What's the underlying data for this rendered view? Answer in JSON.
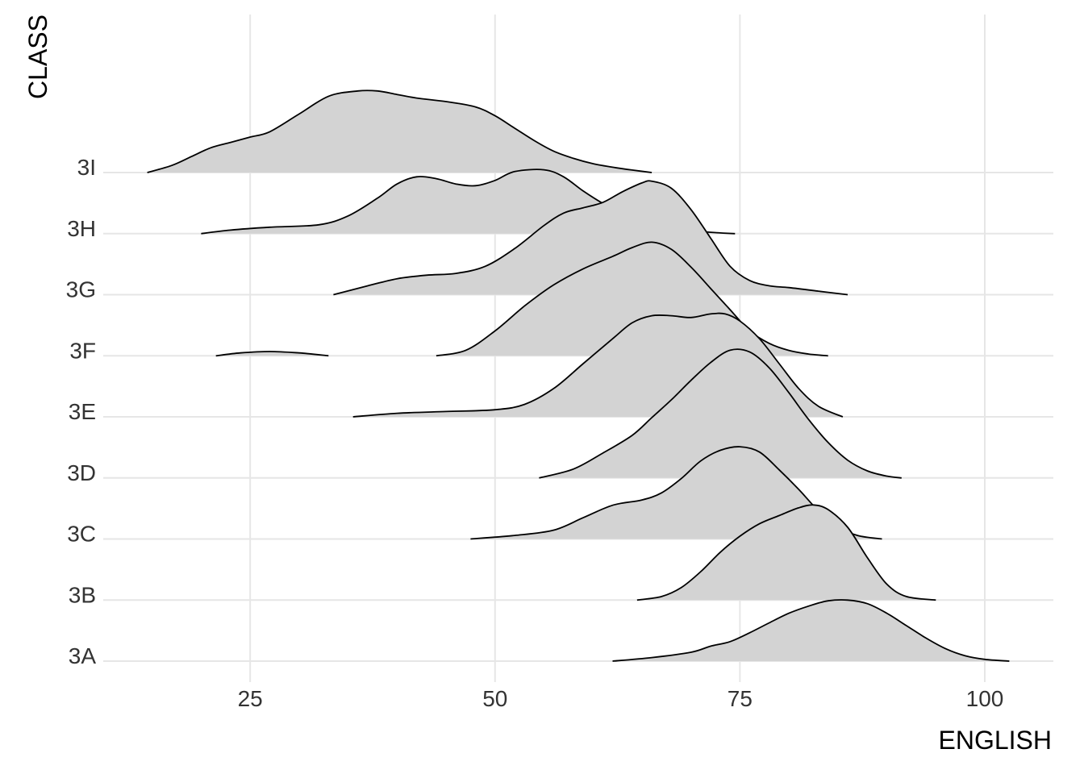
{
  "chart_data": {
    "type": "ridgeline",
    "xlabel": "ENGLISH",
    "ylabel": "CLASS",
    "x_ticks": [
      25,
      50,
      75,
      100
    ],
    "xlim": [
      10,
      107
    ],
    "grid": true,
    "categories": [
      "3A",
      "3B",
      "3C",
      "3D",
      "3E",
      "3F",
      "3G",
      "3H",
      "3I"
    ],
    "series": [
      {
        "name": "3A",
        "x": [
          62,
          66,
          70,
          72,
          74,
          76,
          78,
          80,
          82,
          84,
          86,
          88,
          90,
          92,
          94,
          96,
          98,
          100,
          102.5
        ],
        "y": [
          0.0,
          0.1,
          0.25,
          0.42,
          0.55,
          0.8,
          1.08,
          1.35,
          1.55,
          1.7,
          1.72,
          1.62,
          1.35,
          1.0,
          0.65,
          0.35,
          0.15,
          0.05,
          0.0
        ]
      },
      {
        "name": "3B",
        "x": [
          64.5,
          67,
          69,
          71,
          73,
          75,
          77,
          79,
          81,
          82.5,
          84,
          86,
          88,
          90,
          92,
          95
        ],
        "y": [
          0.0,
          0.1,
          0.35,
          0.8,
          1.35,
          1.8,
          2.15,
          2.38,
          2.6,
          2.68,
          2.55,
          2.05,
          1.2,
          0.45,
          0.1,
          0.0
        ]
      },
      {
        "name": "3C",
        "x": [
          47.5,
          52,
          56,
          59,
          62,
          65,
          67,
          69,
          71,
          73,
          75,
          77,
          79,
          81,
          83,
          85,
          87,
          89.5
        ],
        "y": [
          0.0,
          0.1,
          0.25,
          0.6,
          0.95,
          1.1,
          1.3,
          1.7,
          2.2,
          2.5,
          2.6,
          2.45,
          1.95,
          1.4,
          0.8,
          0.35,
          0.1,
          0.0
        ]
      },
      {
        "name": "3D",
        "x": [
          54.5,
          58,
          61,
          64,
          66,
          68,
          70,
          72,
          74,
          76,
          78,
          80,
          82,
          84,
          86,
          88,
          90,
          91.5
        ],
        "y": [
          0.0,
          0.25,
          0.7,
          1.2,
          1.7,
          2.2,
          2.75,
          3.25,
          3.6,
          3.55,
          3.1,
          2.4,
          1.65,
          1.0,
          0.5,
          0.2,
          0.05,
          0.0
        ]
      },
      {
        "name": "3E",
        "x": [
          35.5,
          40,
          45,
          50,
          53,
          56,
          59,
          62,
          64,
          66,
          68,
          70,
          72,
          73.5,
          75,
          77,
          79,
          81,
          83,
          85.5
        ],
        "y": [
          0.0,
          0.1,
          0.15,
          0.2,
          0.35,
          0.8,
          1.5,
          2.2,
          2.65,
          2.85,
          2.85,
          2.8,
          2.9,
          2.9,
          2.7,
          2.2,
          1.5,
          0.8,
          0.3,
          0.0
        ]
      },
      {
        "name": "3F",
        "x": [
          21.5,
          24,
          27,
          30,
          33,
          44,
          47,
          50,
          53,
          56,
          59,
          62,
          64,
          66,
          68,
          70,
          72,
          74,
          76,
          78,
          80,
          82,
          84
        ],
        "y": [
          0.0,
          0.08,
          0.12,
          0.08,
          0.0,
          0.0,
          0.15,
          0.7,
          1.4,
          2.0,
          2.45,
          2.8,
          3.05,
          3.2,
          3.0,
          2.5,
          1.9,
          1.3,
          0.7,
          0.35,
          0.15,
          0.05,
          0.0
        ]
      },
      {
        "name": "3G",
        "x": [
          33.5,
          37,
          40,
          43,
          46,
          49,
          52,
          55,
          57,
          59,
          61,
          63,
          65,
          66,
          68,
          70,
          72,
          74,
          76,
          78,
          80,
          83,
          86
        ],
        "y": [
          0.0,
          0.25,
          0.45,
          0.55,
          0.6,
          0.8,
          1.3,
          1.95,
          2.3,
          2.45,
          2.6,
          2.9,
          3.15,
          3.2,
          3.0,
          2.4,
          1.6,
          0.8,
          0.4,
          0.25,
          0.2,
          0.1,
          0.0
        ]
      },
      {
        "name": "3H",
        "x": [
          20,
          23,
          27,
          32,
          35,
          38,
          40,
          42,
          44,
          46,
          48,
          50,
          52,
          55,
          57,
          59,
          61,
          63,
          65,
          67,
          69,
          71,
          73,
          74.5
        ],
        "y": [
          0.0,
          0.1,
          0.18,
          0.25,
          0.5,
          1.0,
          1.4,
          1.6,
          1.55,
          1.4,
          1.35,
          1.5,
          1.75,
          1.8,
          1.6,
          1.2,
          0.85,
          0.55,
          0.35,
          0.22,
          0.13,
          0.06,
          0.02,
          0.0
        ]
      },
      {
        "name": "3I",
        "x": [
          14.5,
          17,
          19,
          21,
          23,
          25,
          27,
          30,
          33,
          36,
          38,
          40,
          42,
          45,
          48,
          50,
          52,
          54,
          56,
          58,
          60,
          62,
          64,
          66
        ],
        "y": [
          0.0,
          0.2,
          0.45,
          0.7,
          0.85,
          1.0,
          1.15,
          1.65,
          2.15,
          2.3,
          2.3,
          2.2,
          2.1,
          2.0,
          1.85,
          1.6,
          1.25,
          0.9,
          0.6,
          0.4,
          0.25,
          0.15,
          0.07,
          0.0
        ]
      }
    ]
  }
}
